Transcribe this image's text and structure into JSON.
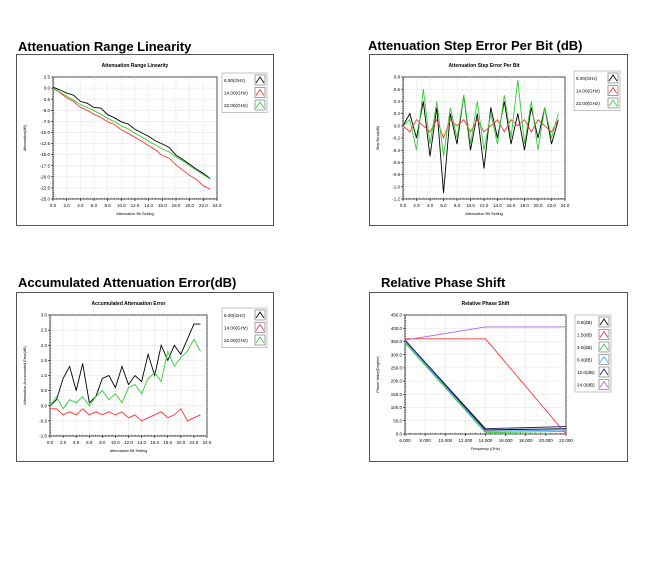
{
  "panels": [
    {
      "heading": "Attenuation Range Linearity"
    },
    {
      "heading": "Attenuation Step Error Per Bit (dB)"
    },
    {
      "heading": "Accumulated Attenuation Error(dB)"
    },
    {
      "heading": "Relative Phase Shift"
    }
  ],
  "chart_data": [
    {
      "type": "line",
      "title": "Attenuation Range Linearity",
      "xlabel": "Attenuation Bit Setting",
      "ylabel": "Attenuation(dB)",
      "xlim": [
        0,
        24
      ],
      "ylim": [
        -25,
        2.5
      ],
      "x_ticks": [
        "0.0",
        "2.0",
        "4.0",
        "6.0",
        "8.0",
        "10.0",
        "12.0",
        "14.0",
        "16.0",
        "18.0",
        "20.0",
        "22.0",
        "24.0"
      ],
      "y_ticks": [
        "2.5",
        "0.0",
        "-2.5",
        "-5.0",
        "-7.5",
        "-10.0",
        "-12.5",
        "-15.0",
        "-17.5",
        "-20.0",
        "-22.5",
        "-25.0"
      ],
      "legend_position": "right",
      "grid": true,
      "series": [
        {
          "name": "6.00(GHz)",
          "color": "#000000",
          "x": [
            0,
            1,
            2,
            3,
            4,
            5,
            6,
            7,
            8,
            9,
            10,
            11,
            12,
            13,
            14,
            15,
            16,
            17,
            18,
            19,
            20,
            21,
            22,
            23
          ],
          "values": [
            0.2,
            -0.4,
            -1.1,
            -1.6,
            -3.0,
            -3.4,
            -4.4,
            -4.5,
            -6.0,
            -6.7,
            -7.6,
            -8.1,
            -9.3,
            -10.1,
            -10.9,
            -11.9,
            -12.6,
            -13.4,
            -15.1,
            -16.1,
            -17.2,
            -18.3,
            -19.2,
            -20.4
          ]
        },
        {
          "name": "14.00(GHz)",
          "color": "#ff3333",
          "x": [
            0,
            1,
            2,
            3,
            4,
            5,
            6,
            7,
            8,
            9,
            10,
            11,
            12,
            13,
            14,
            15,
            16,
            17,
            18,
            19,
            20,
            21,
            22,
            23
          ],
          "values": [
            -0.1,
            -1.0,
            -2.2,
            -3.0,
            -4.3,
            -5.0,
            -5.9,
            -6.6,
            -7.6,
            -8.2,
            -9.4,
            -10.2,
            -11.1,
            -12.0,
            -13.0,
            -13.9,
            -15.2,
            -15.8,
            -17.3,
            -18.5,
            -19.7,
            -20.6,
            -22.0,
            -22.8
          ]
        },
        {
          "name": "22.00(GHz)",
          "color": "#33cc33",
          "x": [
            0,
            1,
            2,
            3,
            4,
            5,
            6,
            7,
            8,
            9,
            10,
            11,
            12,
            13,
            14,
            15,
            16,
            17,
            18,
            19,
            20,
            21,
            22,
            23
          ],
          "values": [
            0.0,
            -0.9,
            -1.8,
            -2.7,
            -3.7,
            -4.4,
            -5.1,
            -5.9,
            -6.8,
            -7.6,
            -8.5,
            -9.2,
            -10.2,
            -11.0,
            -12.0,
            -12.8,
            -13.7,
            -14.4,
            -15.5,
            -16.4,
            -17.5,
            -18.5,
            -19.5,
            -20.5
          ]
        }
      ]
    },
    {
      "type": "line",
      "title": "Attenuation Step Error Per Bit",
      "xlabel": "Attenuation Bit Setting",
      "ylabel": "Step Error(dB)",
      "xlim": [
        0,
        24
      ],
      "ylim": [
        -1.2,
        0.8
      ],
      "x_ticks": [
        "0.0",
        "2.0",
        "4.0",
        "6.0",
        "8.0",
        "10.0",
        "12.0",
        "14.0",
        "16.0",
        "18.0",
        "20.0",
        "22.0",
        "24.0"
      ],
      "y_ticks": [
        "0.8",
        "0.6",
        "0.4",
        "0.2",
        "0.0",
        "-0.2",
        "-0.4",
        "-0.6",
        "-0.8",
        "-1.0",
        "-1.2"
      ],
      "legend_position": "right",
      "grid": true,
      "series": [
        {
          "name": "6.00(GHz)",
          "color": "#000000",
          "x": [
            0,
            1,
            2,
            3,
            4,
            5,
            6,
            7,
            8,
            9,
            10,
            11,
            12,
            13,
            14,
            15,
            16,
            17,
            18,
            19,
            20,
            21,
            22,
            23
          ],
          "values": [
            0.0,
            0.2,
            -0.2,
            0.4,
            -0.5,
            0.3,
            -1.1,
            0.2,
            -0.3,
            0.5,
            -0.4,
            0.2,
            -0.7,
            0.3,
            -0.2,
            0.4,
            -0.3,
            0.2,
            -0.4,
            0.3,
            -0.2,
            0.3,
            -0.3,
            0.1
          ]
        },
        {
          "name": "14.00(GHz)",
          "color": "#ff3333",
          "x": [
            0,
            1,
            2,
            3,
            4,
            5,
            6,
            7,
            8,
            9,
            10,
            11,
            12,
            13,
            14,
            15,
            16,
            17,
            18,
            19,
            20,
            21,
            22,
            23
          ],
          "values": [
            0.0,
            -0.1,
            0.1,
            0.0,
            -0.1,
            0.1,
            -0.2,
            0.1,
            0.0,
            0.1,
            -0.1,
            0.1,
            -0.1,
            0.0,
            0.1,
            -0.1,
            0.1,
            0.0,
            0.1,
            -0.1,
            0.1,
            0.0,
            -0.1,
            0.1
          ]
        },
        {
          "name": "22.00(GHz)",
          "color": "#33cc33",
          "x": [
            0,
            1,
            2,
            3,
            4,
            5,
            6,
            7,
            8,
            9,
            10,
            11,
            12,
            13,
            14,
            15,
            16,
            17,
            18,
            19,
            20,
            21,
            22,
            23
          ],
          "values": [
            0.0,
            0.1,
            -0.4,
            0.6,
            -0.3,
            0.4,
            -0.5,
            0.3,
            -0.2,
            0.5,
            -0.3,
            0.4,
            -0.4,
            0.2,
            -0.3,
            0.5,
            -0.2,
            0.75,
            -0.3,
            0.4,
            -0.4,
            0.3,
            -0.2,
            0.2
          ]
        }
      ]
    },
    {
      "type": "line",
      "title": "Accumulated Attenuation Error",
      "xlabel": "Attenuation Bit Setting",
      "ylabel": "Attenuation Accumulated Error(dB)",
      "xlim": [
        0,
        24
      ],
      "ylim": [
        -1.0,
        3.0
      ],
      "x_ticks": [
        "0.0",
        "2.0",
        "4.0",
        "6.0",
        "8.0",
        "10.0",
        "12.0",
        "14.0",
        "16.0",
        "18.0",
        "20.0",
        "22.0",
        "24.0"
      ],
      "y_ticks": [
        "3.0",
        "2.5",
        "2.0",
        "1.5",
        "1.0",
        "0.5",
        "0.0",
        "-0.5",
        "-1.0"
      ],
      "legend_position": "right",
      "grid": true,
      "series": [
        {
          "name": "6.00(GHz)",
          "color": "#000000",
          "x": [
            0,
            1,
            2,
            3,
            4,
            5,
            6,
            7,
            8,
            9,
            10,
            11,
            12,
            13,
            14,
            15,
            16,
            17,
            18,
            19,
            20,
            21,
            22,
            23
          ],
          "values": [
            0.0,
            0.2,
            0.9,
            1.3,
            0.5,
            1.4,
            0.1,
            0.3,
            0.9,
            1.0,
            0.6,
            1.3,
            0.7,
            1.0,
            0.8,
            1.7,
            1.0,
            2.0,
            1.5,
            2.0,
            1.7,
            2.2,
            2.7,
            2.7
          ]
        },
        {
          "name": "14.00(GHz)",
          "color": "#ff3333",
          "x": [
            0,
            1,
            2,
            3,
            4,
            5,
            6,
            7,
            8,
            9,
            10,
            11,
            12,
            13,
            14,
            15,
            16,
            17,
            18,
            19,
            20,
            21,
            22,
            23
          ],
          "values": [
            -0.1,
            -0.1,
            -0.3,
            -0.2,
            -0.3,
            -0.1,
            -0.3,
            -0.2,
            -0.3,
            -0.2,
            -0.3,
            -0.2,
            -0.4,
            -0.3,
            -0.5,
            -0.4,
            -0.3,
            -0.2,
            -0.4,
            -0.3,
            -0.1,
            -0.5,
            -0.4,
            -0.3
          ]
        },
        {
          "name": "22.00(GHz)",
          "color": "#33cc33",
          "x": [
            0,
            1,
            2,
            3,
            4,
            5,
            6,
            7,
            8,
            9,
            10,
            11,
            12,
            13,
            14,
            15,
            16,
            17,
            18,
            19,
            20,
            21,
            22,
            23
          ],
          "values": [
            0.0,
            0.3,
            -0.1,
            0.2,
            0.1,
            0.3,
            0.0,
            0.3,
            0.5,
            0.2,
            0.4,
            0.1,
            0.6,
            0.7,
            0.4,
            0.9,
            1.1,
            0.8,
            1.8,
            1.3,
            1.6,
            1.8,
            2.2,
            1.8
          ]
        }
      ]
    },
    {
      "type": "line",
      "title": "Relative Phase Shift",
      "xlabel": "Frequency (GHz)",
      "ylabel": "Phase Value(Degree)",
      "xlim": [
        6,
        22
      ],
      "ylim": [
        0,
        450
      ],
      "x_ticks": [
        "6.000",
        "8.000",
        "10.000",
        "12.000",
        "14.000",
        "16.000",
        "18.000",
        "20.000",
        "22.000"
      ],
      "y_ticks": [
        "450.0",
        "400.0",
        "350.0",
        "300.0",
        "250.0",
        "200.0",
        "150.0",
        "100.0",
        "50.0",
        "0.0"
      ],
      "legend_position": "right",
      "grid": true,
      "series": [
        {
          "name": "0.8(dB)",
          "color": "#000000",
          "x": [
            6,
            14,
            22
          ],
          "values": [
            355,
            15,
            20
          ]
        },
        {
          "name": "1.5(dB)",
          "color": "#ff3333",
          "x": [
            6,
            14,
            22
          ],
          "values": [
            360,
            360,
            0
          ]
        },
        {
          "name": "3.0(dB)",
          "color": "#33cc33",
          "x": [
            6,
            14,
            22
          ],
          "values": [
            345,
            5,
            10
          ]
        },
        {
          "name": "6.0(dB)",
          "color": "#4da6ff",
          "x": [
            6,
            14,
            22
          ],
          "values": [
            350,
            10,
            15
          ]
        },
        {
          "name": "12.0(dB)",
          "color": "#1a1a66",
          "x": [
            6,
            14,
            22
          ],
          "values": [
            355,
            20,
            28
          ]
        },
        {
          "name": "24.0(dB)",
          "color": "#b366e6",
          "x": [
            6,
            14,
            22
          ],
          "values": [
            355,
            405,
            405
          ]
        }
      ]
    }
  ]
}
